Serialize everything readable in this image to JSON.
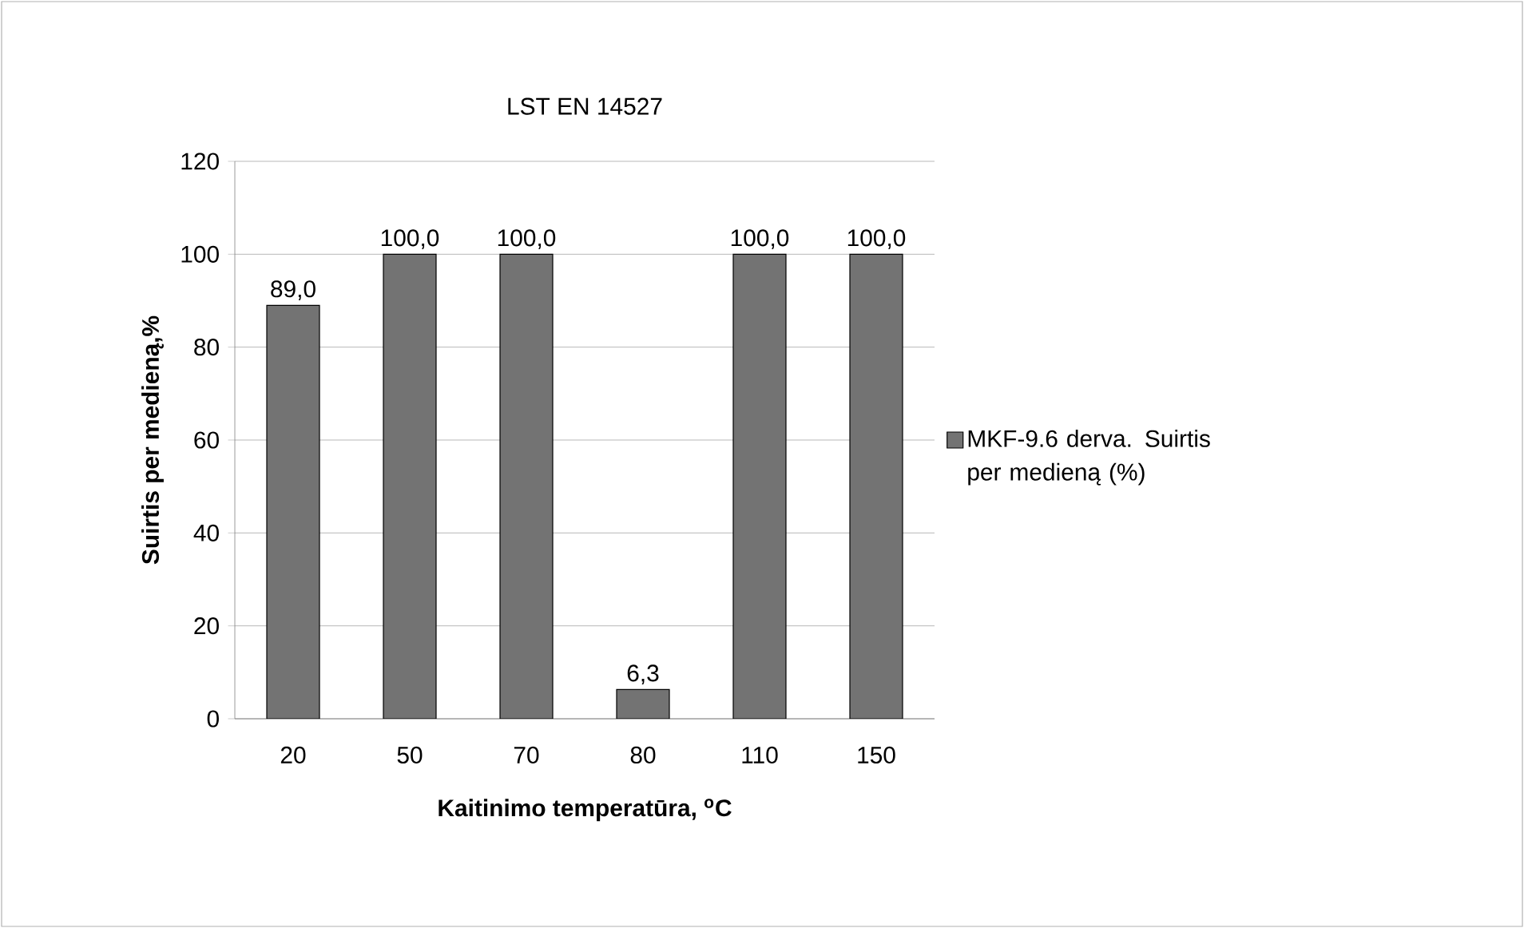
{
  "chart_data": {
    "type": "bar",
    "title": "LST EN 14527",
    "xlabel": "Kaitinimo temperatūra, $^{o}$C",
    "ylabel": "Suirtis per medieną,%",
    "categories": [
      "20",
      "50",
      "70",
      "80",
      "110",
      "150"
    ],
    "series": [
      {
        "name": "MKF-9.6 derva. Suirtis per medieną (%)",
        "color": "#737373",
        "values": [
          89.0,
          100.0,
          100.0,
          6.3,
          100.0,
          100.0
        ],
        "value_labels": [
          "89,0",
          "100,0",
          "100,0",
          "6,3",
          "100,0",
          "100,0"
        ]
      }
    ],
    "ylim": [
      0,
      120
    ],
    "yticks": [
      0,
      20,
      40,
      60,
      80,
      100,
      120
    ],
    "grid": "y",
    "legend": "right"
  }
}
